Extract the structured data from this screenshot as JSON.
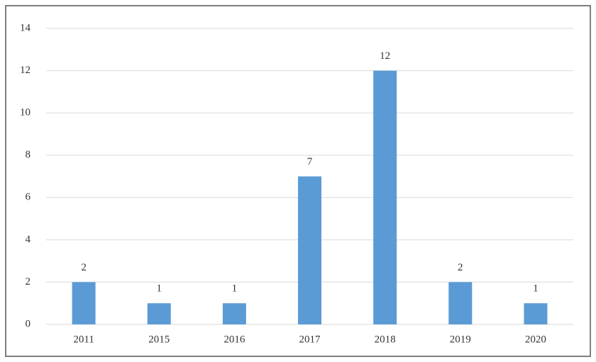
{
  "chart_data": {
    "type": "bar",
    "categories": [
      "2011",
      "2015",
      "2016",
      "2017",
      "2018",
      "2019",
      "2020"
    ],
    "values": [
      2,
      1,
      1,
      7,
      12,
      2,
      1
    ],
    "color": "#5b9bd5",
    "ylim": [
      0,
      14
    ],
    "yticks": [
      0,
      2,
      4,
      6,
      8,
      10,
      12,
      14
    ],
    "grid": true
  }
}
